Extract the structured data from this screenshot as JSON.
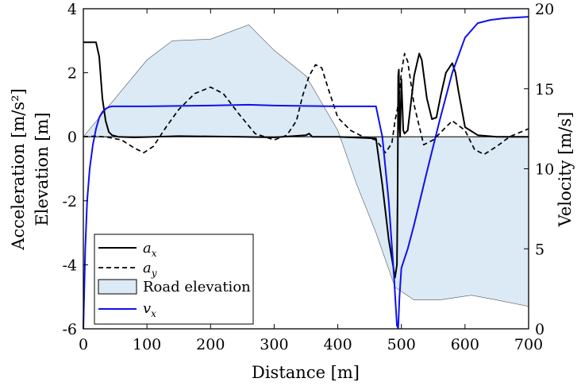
{
  "chart_data": {
    "type": "line",
    "xlabel": "Distance [m]",
    "ylabel_left": [
      "Acceleration [m/s²]",
      "Elevation [m]"
    ],
    "ylabel_right": "Velocity [m/s]",
    "xlim": [
      0,
      700
    ],
    "ylim_left": [
      -6,
      4
    ],
    "ylim_right": [
      0,
      20
    ],
    "xticks": [
      "0",
      "100",
      "200",
      "300",
      "400",
      "500",
      "600",
      "700"
    ],
    "yticks_left": [
      "-6",
      "-4",
      "-2",
      "0",
      "2",
      "4"
    ],
    "yticks_right": [
      "0",
      "5",
      "10",
      "15",
      "20"
    ],
    "grid": false,
    "legend_position": "bottom-left",
    "legend": [
      {
        "label": "a",
        "sub": "x",
        "style": "solid-black"
      },
      {
        "label": "a",
        "sub": "y",
        "style": "dashed-black"
      },
      {
        "label": "Road elevation",
        "style": "filled-area"
      },
      {
        "label": "v",
        "sub": "x",
        "style": "solid-blue"
      }
    ],
    "series": [
      {
        "key": "road_elevation",
        "axis": "left",
        "kind": "area",
        "x": [
          0,
          50,
          100,
          140,
          200,
          260,
          300,
          350,
          400,
          430,
          460,
          490,
          520,
          560,
          610,
          650,
          700
        ],
        "y": [
          0,
          1.2,
          2.4,
          3.0,
          3.05,
          3.5,
          2.7,
          1.9,
          0.2,
          -1.5,
          -3.0,
          -4.7,
          -5.1,
          -5.1,
          -4.95,
          -5.1,
          -5.3
        ]
      },
      {
        "key": "ay",
        "axis": "left",
        "kind": "line",
        "dash": true,
        "x": [
          0,
          20,
          40,
          60,
          80,
          95,
          110,
          130,
          150,
          175,
          200,
          220,
          245,
          270,
          300,
          320,
          335,
          345,
          355,
          365,
          375,
          385,
          400,
          420,
          440,
          460,
          475,
          485,
          490,
          495,
          500,
          505,
          510,
          520,
          535,
          550,
          565,
          580,
          590,
          600,
          615,
          630,
          650,
          670,
          700
        ],
        "y": [
          0,
          0.02,
          -0.02,
          -0.1,
          -0.35,
          -0.5,
          -0.3,
          0.3,
          0.85,
          1.35,
          1.55,
          1.35,
          0.7,
          0.1,
          -0.1,
          0.05,
          0.5,
          1.3,
          1.9,
          2.25,
          2.15,
          1.5,
          0.6,
          0.2,
          0,
          -0.1,
          -0.5,
          -0.2,
          0.5,
          1.0,
          2.0,
          2.6,
          2.35,
          1.0,
          -0.25,
          -0.1,
          0.2,
          0.5,
          0.35,
          0.2,
          -0.4,
          -0.55,
          -0.3,
          0,
          0.25
        ]
      },
      {
        "key": "ax",
        "axis": "left",
        "kind": "line",
        "dash": false,
        "x": [
          0,
          10,
          20,
          25,
          30,
          35,
          40,
          45,
          55,
          80,
          150,
          250,
          300,
          350,
          355,
          360,
          400,
          460,
          470,
          480,
          490,
          493,
          494,
          495,
          496,
          497,
          498,
          500,
          503,
          505,
          510,
          520,
          528,
          532,
          540,
          548,
          555,
          562,
          570,
          580,
          585,
          590,
          600,
          620,
          650,
          700
        ],
        "y": [
          2.95,
          2.95,
          2.95,
          2.5,
          1.2,
          0.5,
          0.15,
          0.05,
          0,
          -0.02,
          0.02,
          0,
          -0.02,
          0.05,
          0.1,
          0,
          0,
          -0.05,
          -1.5,
          -3.2,
          -4.4,
          -4.0,
          -2.0,
          1.9,
          2.1,
          0.3,
          0,
          1.8,
          0.2,
          0.1,
          0.2,
          1.9,
          2.6,
          2.4,
          1.2,
          0.55,
          0.6,
          1.3,
          2.0,
          2.3,
          2.0,
          1.4,
          0.3,
          0.05,
          0,
          0
        ]
      },
      {
        "key": "vx",
        "axis": "right",
        "kind": "line",
        "dash": false,
        "x": [
          0,
          3,
          6,
          10,
          15,
          20,
          25,
          30,
          35,
          40,
          45,
          50,
          100,
          200,
          260,
          300,
          400,
          460,
          470,
          480,
          488,
          493,
          495,
          497,
          500,
          510,
          520,
          540,
          560,
          580,
          600,
          620,
          640,
          660,
          700
        ],
        "y": [
          0,
          5.0,
          8.0,
          10.0,
          11.5,
          12.5,
          13.2,
          13.55,
          13.75,
          13.85,
          13.9,
          13.9,
          13.9,
          13.95,
          14.0,
          13.95,
          13.9,
          13.9,
          12.0,
          8.0,
          3.5,
          0.2,
          0.05,
          2.0,
          3.8,
          5.0,
          6.5,
          9.8,
          13.0,
          16.0,
          18.2,
          19.1,
          19.3,
          19.4,
          19.5
        ]
      }
    ]
  },
  "colors": {
    "elevation_fill": "#dbeaf4",
    "elevation_edge": "#555555",
    "velocity": "#1010ee",
    "acceleration": "#000000"
  }
}
